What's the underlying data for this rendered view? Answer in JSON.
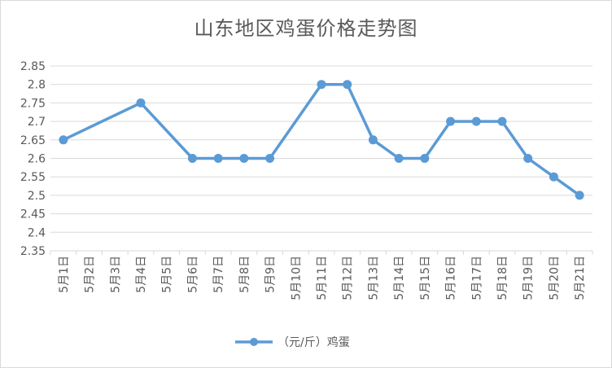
{
  "chart_data": {
    "type": "line",
    "title": "山东地区鸡蛋价格走势图",
    "xlabel": "",
    "ylabel": "",
    "categories": [
      "5月1日",
      "5月2日",
      "5月3日",
      "5月4日",
      "5月5日",
      "5月6日",
      "5月7日",
      "5月8日",
      "5月9日",
      "5月10日",
      "5月11日",
      "5月12日",
      "5月13日",
      "5月14日",
      "5月15日",
      "5月16日",
      "5月17日",
      "5月18日",
      "5月19日",
      "5月20日",
      "5月21日"
    ],
    "y_ticks": [
      "2.35",
      "2.4",
      "2.45",
      "2.5",
      "2.55",
      "2.6",
      "2.65",
      "2.7",
      "2.75",
      "2.8",
      "2.85"
    ],
    "ylim": [
      2.35,
      2.85
    ],
    "grid": true,
    "legend_position": "bottom",
    "series": [
      {
        "name": "（元/斤）鸡蛋",
        "color": "#5b9bd5",
        "points": [
          {
            "x": "5月1日",
            "y": 2.65
          },
          {
            "x": "5月4日",
            "y": 2.75
          },
          {
            "x": "5月6日",
            "y": 2.6
          },
          {
            "x": "5月7日",
            "y": 2.6
          },
          {
            "x": "5月8日",
            "y": 2.6
          },
          {
            "x": "5月9日",
            "y": 2.6
          },
          {
            "x": "5月11日",
            "y": 2.8
          },
          {
            "x": "5月12日",
            "y": 2.8
          },
          {
            "x": "5月13日",
            "y": 2.65
          },
          {
            "x": "5月14日",
            "y": 2.6
          },
          {
            "x": "5月15日",
            "y": 2.6
          },
          {
            "x": "5月16日",
            "y": 2.7
          },
          {
            "x": "5月17日",
            "y": 2.7
          },
          {
            "x": "5月18日",
            "y": 2.7
          },
          {
            "x": "5月19日",
            "y": 2.6
          },
          {
            "x": "5月20日",
            "y": 2.55
          },
          {
            "x": "5月21日",
            "y": 2.5
          }
        ]
      }
    ],
    "colors": {
      "gridline": "#d9d9d9",
      "text": "#595959"
    }
  }
}
